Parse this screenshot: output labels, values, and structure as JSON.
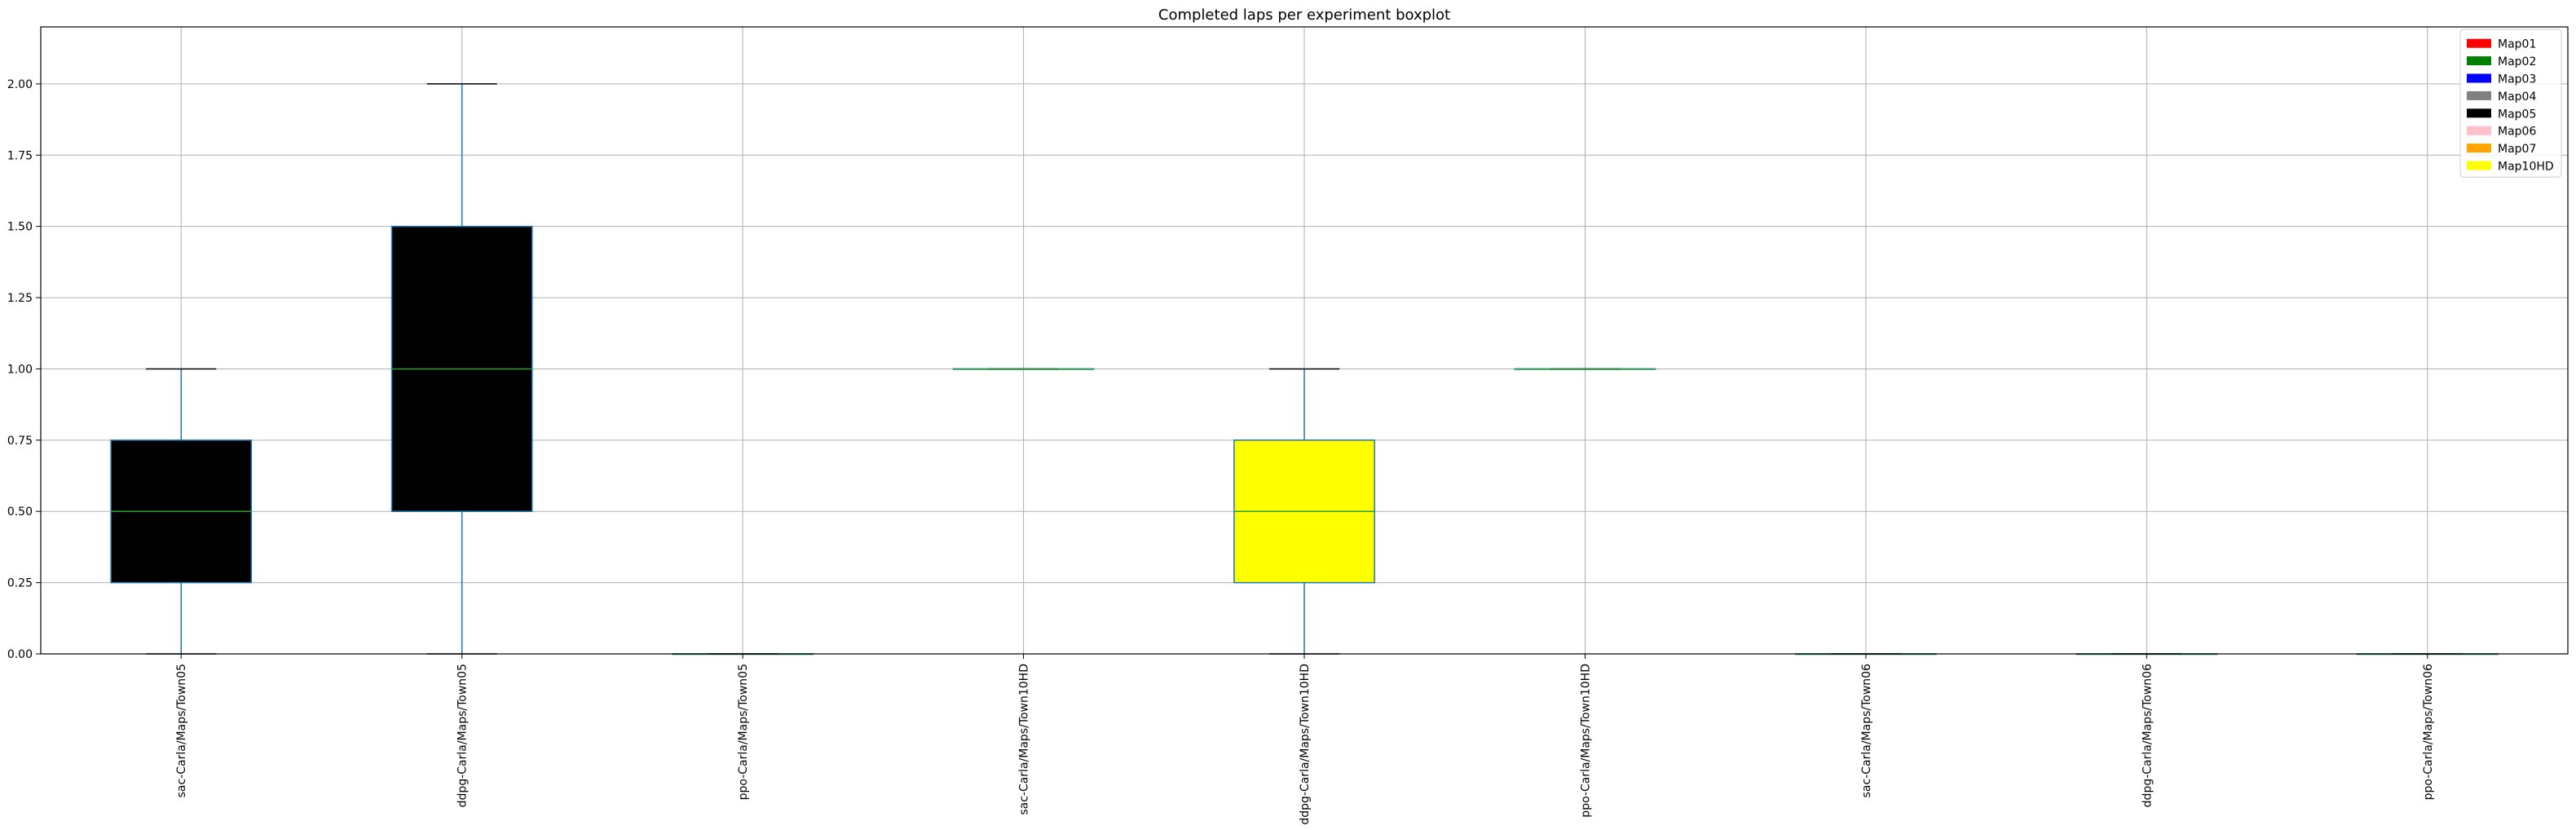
{
  "chart_data": {
    "type": "boxplot",
    "title": "Completed laps per experiment boxplot",
    "xlabel": "",
    "ylabel": "",
    "ylim": [
      0,
      2.2
    ],
    "yticks": [
      0.0,
      0.25,
      0.5,
      0.75,
      1.0,
      1.25,
      1.5,
      1.75,
      2.0
    ],
    "ytick_labels": [
      "0.00",
      "0.25",
      "0.50",
      "0.75",
      "1.00",
      "1.25",
      "1.50",
      "1.75",
      "2.00"
    ],
    "grid": true,
    "legend_position": "top-right",
    "legend": [
      {
        "name": "Map01",
        "color": "#ff0000"
      },
      {
        "name": "Map02",
        "color": "#008000"
      },
      {
        "name": "Map03",
        "color": "#0000ff"
      },
      {
        "name": "Map04",
        "color": "#808080"
      },
      {
        "name": "Map05",
        "color": "#000000"
      },
      {
        "name": "Map06",
        "color": "#ffc0cb"
      },
      {
        "name": "Map07",
        "color": "#ffa500"
      },
      {
        "name": "Map10HD",
        "color": "#ffff00"
      }
    ],
    "box_edge_color": "#1f77b4",
    "median_color": "#2ca02c",
    "cap_color": "#000000",
    "categories": [
      "sac-Carla/Maps/Town05",
      "ddpg-Carla/Maps/Town05",
      "ppo-Carla/Maps/Town05",
      "sac-Carla/Maps/Town10HD",
      "ddpg-Carla/Maps/Town10HD",
      "ppo-Carla/Maps/Town10HD",
      "sac-Carla/Maps/Town06",
      "ddpg-Carla/Maps/Town06",
      "ppo-Carla/Maps/Town06"
    ],
    "boxes": [
      {
        "min": 0,
        "q1": 0.25,
        "median": 0.5,
        "q3": 0.75,
        "max": 1.0,
        "fill": "#000000"
      },
      {
        "min": 0,
        "q1": 0.5,
        "median": 1.0,
        "q3": 1.5,
        "max": 2.0,
        "fill": "#000000"
      },
      {
        "min": 0,
        "q1": 0,
        "median": 0,
        "q3": 0,
        "max": 0,
        "fill": "#000000"
      },
      {
        "min": 1.0,
        "q1": 1.0,
        "median": 1.0,
        "q3": 1.0,
        "max": 1.0,
        "fill": "#ffff00"
      },
      {
        "min": 0,
        "q1": 0.25,
        "median": 0.5,
        "q3": 0.75,
        "max": 1.0,
        "fill": "#ffff00"
      },
      {
        "min": 1.0,
        "q1": 1.0,
        "median": 1.0,
        "q3": 1.0,
        "max": 1.0,
        "fill": "#ffff00"
      },
      {
        "min": 0,
        "q1": 0,
        "median": 0,
        "q3": 0,
        "max": 0,
        "fill": "#808080"
      },
      {
        "min": 0,
        "q1": 0,
        "median": 0,
        "q3": 0,
        "max": 0,
        "fill": "#808080"
      },
      {
        "min": 0,
        "q1": 0,
        "median": 0,
        "q3": 0,
        "max": 0,
        "fill": "#808080"
      }
    ]
  }
}
